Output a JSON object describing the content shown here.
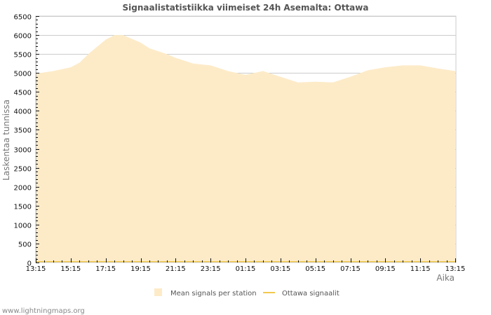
{
  "chart_data": {
    "type": "area",
    "title": "Signaalistatistiikka viimeiset 24h Asemalta: Ottawa",
    "xlabel": "Aika",
    "ylabel": "Laskentaa tunnissa",
    "ylim": [
      0,
      6500
    ],
    "yticks": [
      0,
      500,
      1000,
      1500,
      2000,
      2500,
      3000,
      3500,
      4000,
      4500,
      5000,
      5500,
      6000,
      6500
    ],
    "xticks": [
      "13:15",
      "15:15",
      "17:15",
      "19:15",
      "21:15",
      "23:15",
      "01:15",
      "03:15",
      "05:15",
      "07:15",
      "09:15",
      "11:15",
      "13:15"
    ],
    "grid": true,
    "legend_position": "bottom",
    "x": [
      "13:15",
      "14:15",
      "15:15",
      "15:45",
      "16:15",
      "17:15",
      "17:45",
      "18:15",
      "19:15",
      "19:45",
      "20:45",
      "21:15",
      "22:15",
      "23:15",
      "00:15",
      "01:15",
      "02:15",
      "03:15",
      "04:15",
      "05:15",
      "06:15",
      "07:15",
      "08:15",
      "09:15",
      "10:15",
      "11:15",
      "12:15",
      "13:15"
    ],
    "series": [
      {
        "name": "Mean signals per station",
        "type": "area",
        "color": "#fdebc8",
        "values": [
          4980,
          5050,
          5150,
          5270,
          5500,
          5880,
          6000,
          6000,
          5800,
          5650,
          5500,
          5400,
          5250,
          5200,
          5050,
          4950,
          5050,
          4900,
          4750,
          4770,
          4750,
          4900,
          5070,
          5150,
          5200,
          5200,
          5120,
          5050
        ]
      },
      {
        "name": "Ottawa signaalit",
        "type": "line",
        "color": "#f2c94c",
        "values": [
          0,
          0,
          0,
          0,
          0,
          0,
          0,
          0,
          0,
          0,
          0,
          0,
          0,
          0,
          0,
          0,
          0,
          0,
          0,
          0,
          0,
          0,
          0,
          0,
          0,
          0,
          0,
          0
        ]
      }
    ]
  },
  "legend": {
    "items": [
      {
        "label": "Mean signals per station",
        "color": "#fdebc8"
      },
      {
        "label": "Ottawa signaalit",
        "color": "#f2c94c"
      }
    ]
  },
  "footer": {
    "text": "www.lightningmaps.org"
  },
  "colors": {
    "grid": "#cccccc",
    "area": "#fdebc8",
    "line": "#f2c94c",
    "axis": "#111111"
  }
}
